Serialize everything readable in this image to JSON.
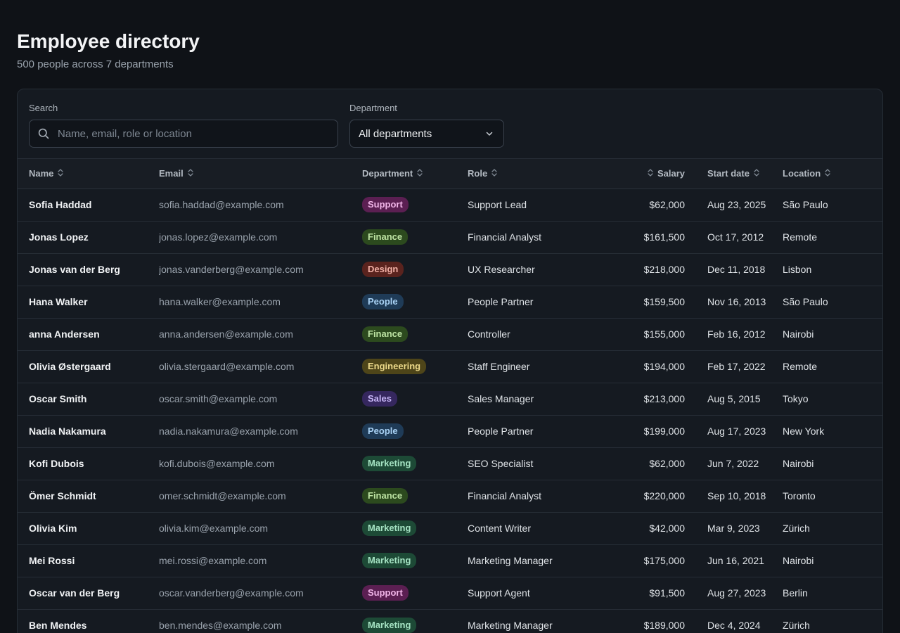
{
  "header": {
    "title": "Employee directory",
    "subtitle": "500 people across 7 departments"
  },
  "filters": {
    "search_label": "Search",
    "search_placeholder": "Name, email, role or location",
    "search_value": "",
    "department_label": "Department",
    "department_selected": "All departments"
  },
  "table": {
    "columns": {
      "name": "Name",
      "email": "Email",
      "department": "Department",
      "role": "Role",
      "salary": "Salary",
      "start_date": "Start date",
      "location": "Location"
    },
    "rows": [
      {
        "name": "Sofia Haddad",
        "email": "sofia.haddad@example.com",
        "department": "Support",
        "role": "Support Lead",
        "salary": "$62,000",
        "start_date": "Aug 23, 2025",
        "location": "São Paulo"
      },
      {
        "name": "Jonas Lopez",
        "email": "jonas.lopez@example.com",
        "department": "Finance",
        "role": "Financial Analyst",
        "salary": "$161,500",
        "start_date": "Oct 17, 2012",
        "location": "Remote"
      },
      {
        "name": "Jonas van der Berg",
        "email": "jonas.vanderberg@example.com",
        "department": "Design",
        "role": "UX Researcher",
        "salary": "$218,000",
        "start_date": "Dec 11, 2018",
        "location": "Lisbon"
      },
      {
        "name": "Hana Walker",
        "email": "hana.walker@example.com",
        "department": "People",
        "role": "People Partner",
        "salary": "$159,500",
        "start_date": "Nov 16, 2013",
        "location": "São Paulo"
      },
      {
        "name": "anna Andersen",
        "email": "anna.andersen@example.com",
        "department": "Finance",
        "role": "Controller",
        "salary": "$155,000",
        "start_date": "Feb 16, 2012",
        "location": "Nairobi"
      },
      {
        "name": "Olivia Østergaard",
        "email": "olivia.stergaard@example.com",
        "department": "Engineering",
        "role": "Staff Engineer",
        "salary": "$194,000",
        "start_date": "Feb 17, 2022",
        "location": "Remote"
      },
      {
        "name": "Oscar Smith",
        "email": "oscar.smith@example.com",
        "department": "Sales",
        "role": "Sales Manager",
        "salary": "$213,000",
        "start_date": "Aug 5, 2015",
        "location": "Tokyo"
      },
      {
        "name": "Nadia Nakamura",
        "email": "nadia.nakamura@example.com",
        "department": "People",
        "role": "People Partner",
        "salary": "$199,000",
        "start_date": "Aug 17, 2023",
        "location": "New York"
      },
      {
        "name": "Kofi Dubois",
        "email": "kofi.dubois@example.com",
        "department": "Marketing",
        "role": "SEO Specialist",
        "salary": "$62,000",
        "start_date": "Jun 7, 2022",
        "location": "Nairobi"
      },
      {
        "name": "Ömer Schmidt",
        "email": "omer.schmidt@example.com",
        "department": "Finance",
        "role": "Financial Analyst",
        "salary": "$220,000",
        "start_date": "Sep 10, 2018",
        "location": "Toronto"
      },
      {
        "name": "Olivia Kim",
        "email": "olivia.kim@example.com",
        "department": "Marketing",
        "role": "Content Writer",
        "salary": "$42,000",
        "start_date": "Mar 9, 2023",
        "location": "Zürich"
      },
      {
        "name": "Mei Rossi",
        "email": "mei.rossi@example.com",
        "department": "Marketing",
        "role": "Marketing Manager",
        "salary": "$175,000",
        "start_date": "Jun 16, 2021",
        "location": "Nairobi"
      },
      {
        "name": "Oscar van der Berg",
        "email": "oscar.vanderberg@example.com",
        "department": "Support",
        "role": "Support Agent",
        "salary": "$91,500",
        "start_date": "Aug 27, 2023",
        "location": "Berlin"
      },
      {
        "name": "Ben Mendes",
        "email": "ben.mendes@example.com",
        "department": "Marketing",
        "role": "Marketing Manager",
        "salary": "$189,000",
        "start_date": "Dec 4, 2024",
        "location": "Zürich"
      }
    ]
  },
  "icons": {
    "search": "search-icon",
    "dropdown": "chevron-down-icon",
    "sort": "sort-icon"
  },
  "colors": {
    "background": "#0f1217",
    "card": "#151a21",
    "border": "#262d36",
    "Support": "#5b1f52",
    "Finance": "#2c4a1e",
    "Design": "#5a231e",
    "People": "#1f3b57",
    "Engineering": "#4e4519",
    "Sales": "#35275e",
    "Marketing": "#1d4a36"
  }
}
